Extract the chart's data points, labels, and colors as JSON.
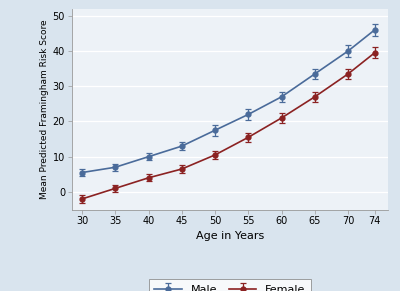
{
  "ages": [
    30,
    35,
    40,
    45,
    50,
    55,
    60,
    65,
    70,
    74
  ],
  "male_values": [
    5.5,
    7.0,
    10.0,
    13.0,
    17.5,
    22.0,
    27.0,
    33.5,
    40.0,
    46.0
  ],
  "female_values": [
    -2.0,
    1.0,
    4.0,
    6.5,
    10.5,
    15.5,
    21.0,
    27.0,
    33.5,
    39.5
  ],
  "male_errors": [
    1.0,
    1.0,
    1.0,
    1.2,
    1.5,
    1.5,
    1.5,
    1.5,
    1.8,
    1.8
  ],
  "female_errors": [
    1.2,
    1.0,
    1.0,
    1.0,
    1.2,
    1.2,
    1.5,
    1.5,
    1.5,
    1.5
  ],
  "male_color": "#4a6b9a",
  "female_color": "#8b2222",
  "xlabel": "Age in Years",
  "ylabel": "Mean Predicted Framingham Risk Score",
  "ylim": [
    -5,
    52
  ],
  "yticks": [
    0,
    10,
    20,
    30,
    40,
    50
  ],
  "xticks": [
    30,
    35,
    40,
    45,
    50,
    55,
    60,
    65,
    70,
    74
  ],
  "legend_male": "Male",
  "legend_female": "Female",
  "bg_color": "#d9e4ee",
  "plot_bg_color": "#edf2f7"
}
